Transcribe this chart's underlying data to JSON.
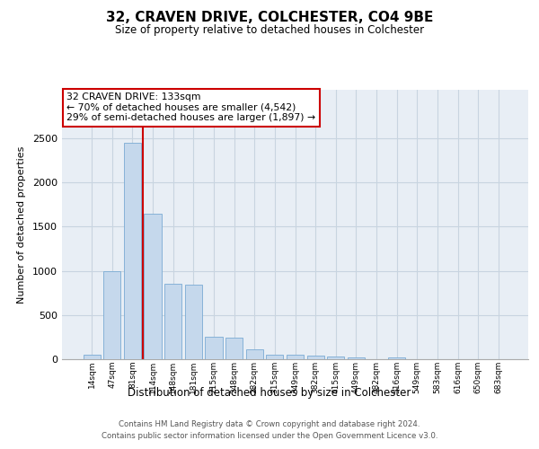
{
  "title": "32, CRAVEN DRIVE, COLCHESTER, CO4 9BE",
  "subtitle": "Size of property relative to detached houses in Colchester",
  "xlabel": "Distribution of detached houses by size in Colchester",
  "ylabel": "Number of detached properties",
  "categories": [
    "14sqm",
    "47sqm",
    "81sqm",
    "114sqm",
    "148sqm",
    "181sqm",
    "215sqm",
    "248sqm",
    "282sqm",
    "315sqm",
    "349sqm",
    "382sqm",
    "415sqm",
    "449sqm",
    "482sqm",
    "516sqm",
    "549sqm",
    "583sqm",
    "616sqm",
    "650sqm",
    "683sqm"
  ],
  "values": [
    50,
    1000,
    2450,
    1650,
    850,
    840,
    255,
    245,
    110,
    55,
    50,
    45,
    30,
    20,
    0,
    20,
    0,
    0,
    0,
    0,
    0
  ],
  "bar_color": "#c5d8ec",
  "bar_edge_color": "#7aabd4",
  "vline_color": "#cc0000",
  "vline_x": 2.5,
  "annotation_line1": "32 CRAVEN DRIVE: 133sqm",
  "annotation_line2": "← 70% of detached houses are smaller (4,542)",
  "annotation_line3": "29% of semi-detached houses are larger (1,897) →",
  "annotation_box_edge": "#cc0000",
  "ylim": [
    0,
    3050
  ],
  "yticks": [
    0,
    500,
    1000,
    1500,
    2000,
    2500
  ],
  "background_color": "#e8eef5",
  "grid_color": "#c8d4e0",
  "footer1": "Contains HM Land Registry data © Crown copyright and database right 2024.",
  "footer2": "Contains public sector information licensed under the Open Government Licence v3.0."
}
